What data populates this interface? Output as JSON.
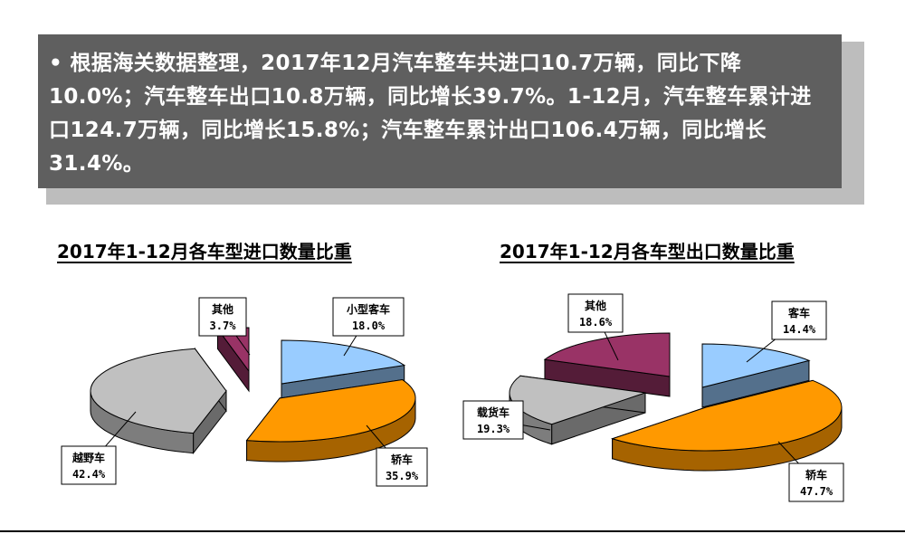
{
  "summary": {
    "bullet": "•",
    "text": "根据海关数据整理，2017年12月汽车整车共进口10.7万辆，同比下降10.0%；汽车整车出口10.8万辆，同比增长39.7%。1-12月，汽车整车累计进口124.7万辆，同比增长15.8%；汽车整车累计出口106.4万辆，同比增长31.4%。"
  },
  "chart_data": [
    {
      "type": "pie",
      "title": "2017年1-12月各车型进口数量比重",
      "slices": [
        {
          "label": "小型客车",
          "value": 18.0,
          "display": "18.0%",
          "color": "#99ccff"
        },
        {
          "label": "轿车",
          "value": 35.9,
          "display": "35.9%",
          "color": "#ff9900"
        },
        {
          "label": "越野车",
          "value": 42.4,
          "display": "42.4%",
          "color": "#c0c0c0"
        },
        {
          "label": "其他",
          "value": 3.7,
          "display": "3.7%",
          "color": "#993366"
        }
      ]
    },
    {
      "type": "pie",
      "title": "2017年1-12月各车型出口数量比重",
      "slices": [
        {
          "label": "客车",
          "value": 14.4,
          "display": "14.4%",
          "color": "#99ccff"
        },
        {
          "label": "轿车",
          "value": 47.7,
          "display": "47.7%",
          "color": "#ff9900"
        },
        {
          "label": "载货车",
          "value": 19.3,
          "display": "19.3%",
          "color": "#c0c0c0"
        },
        {
          "label": "其他",
          "value": 18.6,
          "display": "18.6%",
          "color": "#993366"
        }
      ]
    }
  ]
}
